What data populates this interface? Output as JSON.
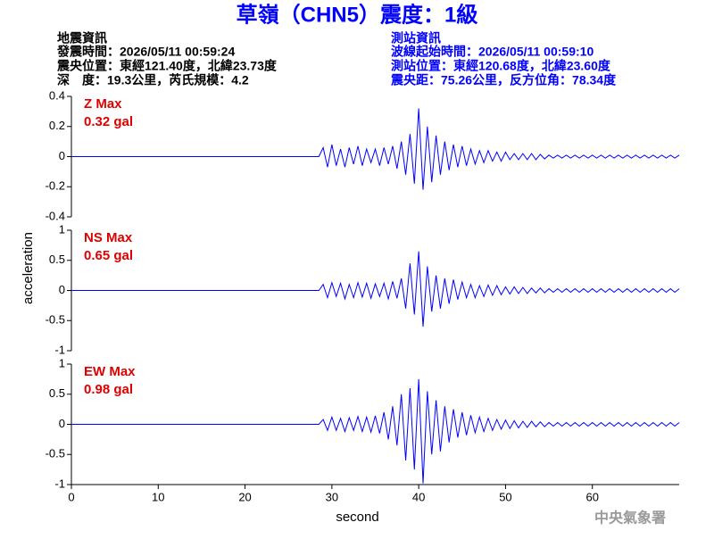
{
  "header": {
    "title": "草嶺（CHN5）震度：1級",
    "event": [
      "地震資訊",
      "發震時間：2026/05/11 00:59:24",
      "震央位置：東經121.40度，北緯23.73度",
      "深　度：19.3公里，芮氏規模：4.2"
    ],
    "station": [
      "測站資訊",
      "波線起始時間：2026/05/11 00:59:10",
      "測站位置：東經120.68度，北緯23.60度",
      "震央距：75.26公里，反方位角：78.34度"
    ],
    "footer": "中央氣象署"
  },
  "chart_data": [
    {
      "type": "line",
      "annotation": [
        "Z Max",
        "0.32 gal"
      ],
      "xlim": [
        0,
        70
      ],
      "ylim": [
        -0.4,
        0.4
      ],
      "yticks": [
        0.4,
        0.2,
        0,
        -0.2,
        -0.4
      ],
      "x": [
        0,
        28.5,
        29,
        29.5,
        30,
        30.5,
        31,
        31.5,
        32,
        32.5,
        33,
        33.5,
        34,
        34.5,
        35,
        35.5,
        36,
        36.5,
        37,
        37.5,
        38,
        38.5,
        39,
        39.5,
        40,
        40.5,
        41,
        41.5,
        42,
        42.5,
        43,
        43.5,
        44,
        44.5,
        45,
        45.5,
        46,
        46.5,
        47,
        47.5,
        48,
        48.5,
        49,
        49.5,
        50,
        50.5,
        51,
        51.5,
        52,
        52.5,
        53,
        53.5,
        54,
        54.5,
        55,
        55.5,
        56,
        56.5,
        57,
        57.5,
        58,
        58.5,
        59,
        59.5,
        60,
        60.5,
        61,
        61.5,
        62,
        62.5,
        63,
        63.5,
        64,
        64.5,
        65,
        65.5,
        66,
        66.5,
        67,
        67.5,
        68,
        68.5,
        69,
        69.5,
        70
      ],
      "series": [
        {
          "color": "#0000ff",
          "values": [
            0,
            0,
            0.06,
            -0.07,
            0.08,
            -0.06,
            0.05,
            -0.07,
            0.06,
            -0.05,
            0.07,
            -0.06,
            0.05,
            -0.04,
            0.05,
            -0.06,
            0.06,
            -0.05,
            0.07,
            -0.08,
            0.1,
            -0.12,
            0.15,
            -0.18,
            0.32,
            -0.22,
            0.2,
            -0.17,
            0.14,
            -0.12,
            0.1,
            -0.09,
            0.08,
            -0.07,
            0.07,
            -0.06,
            0.05,
            -0.05,
            0.04,
            -0.04,
            0.04,
            -0.03,
            0.03,
            -0.03,
            0.03,
            -0.02,
            0.02,
            -0.02,
            0.02,
            -0.02,
            0.02,
            -0.02,
            0.015,
            -0.015,
            0.01,
            -0.01,
            0.01,
            -0.01,
            0.01,
            -0.01,
            0.01,
            -0.01,
            0.01,
            -0.01,
            0.01,
            -0.01,
            0.01,
            -0.01,
            0.01,
            -0.01,
            0.01,
            -0.01,
            0.01,
            -0.01,
            0.01,
            -0.01,
            0.01,
            -0.01,
            0.01,
            -0.01,
            0.01,
            -0.01,
            0.01,
            -0.01,
            0.01
          ]
        }
      ]
    },
    {
      "type": "line",
      "annotation": [
        "NS Max",
        "0.65 gal"
      ],
      "ylabel": "acceleration",
      "xlim": [
        0,
        70
      ],
      "ylim": [
        -1,
        1
      ],
      "yticks": [
        1,
        0.5,
        0,
        -0.5,
        -1
      ],
      "x": [
        0,
        28.5,
        29,
        29.5,
        30,
        30.5,
        31,
        31.5,
        32,
        32.5,
        33,
        33.5,
        34,
        34.5,
        35,
        35.5,
        36,
        36.5,
        37,
        37.5,
        38,
        38.5,
        39,
        39.5,
        40,
        40.5,
        41,
        41.5,
        42,
        42.5,
        43,
        43.5,
        44,
        44.5,
        45,
        45.5,
        46,
        46.5,
        47,
        47.5,
        48,
        48.5,
        49,
        49.5,
        50,
        50.5,
        51,
        51.5,
        52,
        52.5,
        53,
        53.5,
        54,
        54.5,
        55,
        55.5,
        56,
        56.5,
        57,
        57.5,
        58,
        58.5,
        59,
        59.5,
        60,
        60.5,
        61,
        61.5,
        62,
        62.5,
        63,
        63.5,
        64,
        64.5,
        65,
        65.5,
        66,
        66.5,
        67,
        67.5,
        68,
        68.5,
        69,
        69.5,
        70
      ],
      "series": [
        {
          "color": "#0000ff",
          "values": [
            0,
            0,
            0.1,
            -0.12,
            0.13,
            -0.1,
            0.12,
            -0.14,
            0.1,
            -0.12,
            0.13,
            -0.11,
            0.12,
            -0.13,
            0.11,
            -0.1,
            0.12,
            -0.14,
            0.15,
            -0.13,
            0.2,
            -0.3,
            0.45,
            -0.4,
            0.65,
            -0.6,
            0.4,
            -0.35,
            0.25,
            -0.3,
            0.2,
            -0.22,
            0.18,
            -0.15,
            0.14,
            -0.12,
            0.1,
            -0.12,
            0.08,
            -0.1,
            0.09,
            -0.08,
            0.08,
            -0.07,
            0.06,
            -0.06,
            0.06,
            -0.05,
            0.05,
            -0.05,
            0.04,
            -0.04,
            0.04,
            -0.04,
            0.03,
            -0.03,
            0.03,
            -0.03,
            0.03,
            -0.03,
            0.03,
            -0.03,
            0.03,
            -0.03,
            0.03,
            -0.03,
            0.03,
            -0.03,
            0.03,
            -0.03,
            0.03,
            -0.03,
            0.03,
            -0.03,
            0.03,
            -0.03,
            0.03,
            -0.03,
            0.03,
            -0.03,
            0.03,
            -0.03,
            0.03,
            -0.03,
            0.03
          ]
        }
      ]
    },
    {
      "type": "line",
      "annotation": [
        "EW Max",
        "0.98 gal"
      ],
      "xlabel": "second",
      "xlim": [
        0,
        70
      ],
      "xticks": [
        0,
        10,
        20,
        30,
        40,
        50,
        60
      ],
      "ylim": [
        -1,
        1
      ],
      "yticks": [
        1,
        0.5,
        0,
        -0.5,
        -1
      ],
      "x": [
        0,
        28.5,
        29,
        29.5,
        30,
        30.5,
        31,
        31.5,
        32,
        32.5,
        33,
        33.5,
        34,
        34.5,
        35,
        35.5,
        36,
        36.5,
        37,
        37.5,
        38,
        38.5,
        39,
        39.5,
        40,
        40.5,
        41,
        41.5,
        42,
        42.5,
        43,
        43.5,
        44,
        44.5,
        45,
        45.5,
        46,
        46.5,
        47,
        47.5,
        48,
        48.5,
        49,
        49.5,
        50,
        50.5,
        51,
        51.5,
        52,
        52.5,
        53,
        53.5,
        54,
        54.5,
        55,
        55.5,
        56,
        56.5,
        57,
        57.5,
        58,
        58.5,
        59,
        59.5,
        60,
        60.5,
        61,
        61.5,
        62,
        62.5,
        63,
        63.5,
        64,
        64.5,
        65,
        65.5,
        66,
        66.5,
        67,
        67.5,
        68,
        68.5,
        69,
        69.5,
        70
      ],
      "series": [
        {
          "color": "#0000ff",
          "values": [
            0,
            0,
            0.08,
            -0.1,
            0.12,
            -0.1,
            0.1,
            -0.12,
            0.11,
            -0.1,
            0.13,
            -0.12,
            0.12,
            -0.13,
            0.14,
            -0.15,
            0.2,
            -0.25,
            0.3,
            -0.35,
            0.5,
            -0.6,
            0.6,
            -0.75,
            0.75,
            -0.98,
            0.55,
            -0.5,
            0.4,
            -0.45,
            0.3,
            -0.3,
            0.25,
            -0.22,
            0.2,
            -0.18,
            0.15,
            -0.14,
            0.12,
            -0.12,
            0.1,
            -0.1,
            0.08,
            -0.08,
            0.07,
            -0.07,
            0.06,
            -0.06,
            0.05,
            -0.05,
            0.05,
            -0.04,
            0.04,
            -0.04,
            0.03,
            -0.03,
            0.03,
            -0.03,
            0.03,
            -0.03,
            0.03,
            -0.03,
            0.03,
            -0.03,
            0.03,
            -0.03,
            0.03,
            -0.03,
            0.03,
            -0.03,
            0.03,
            -0.03,
            0.03,
            -0.03,
            0.03,
            -0.03,
            0.03,
            -0.03,
            0.03,
            -0.03,
            0.03,
            -0.03,
            0.03,
            -0.03,
            0.03
          ]
        }
      ]
    }
  ]
}
